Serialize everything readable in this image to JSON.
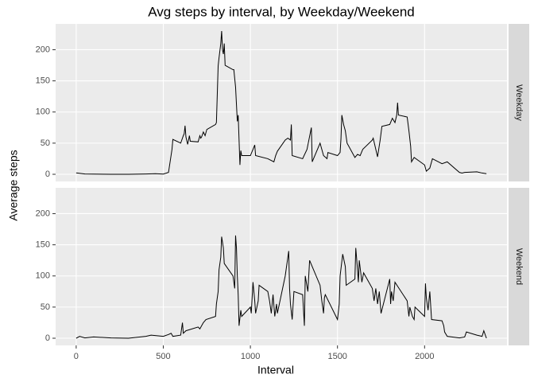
{
  "chart_data": {
    "type": "line",
    "title": "Avg steps by interval, by Weekday/Weekend",
    "x_label": "Interval",
    "y_label": "Average steps",
    "xlim": [
      -118,
      2473
    ],
    "ylim": [
      -11.5,
      241.5
    ],
    "xticks": [
      0,
      500,
      1000,
      1500,
      2000
    ],
    "yticks": [
      0,
      50,
      100,
      150,
      200
    ],
    "grid": true,
    "color": "#000000",
    "facets": [
      {
        "name": "Weekday",
        "x": [
          0,
          50,
          100,
          200,
          300,
          400,
          455,
          500,
          530,
          550,
          555,
          600,
          615,
          620,
          625,
          630,
          640,
          650,
          655,
          700,
          710,
          715,
          720,
          730,
          740,
          750,
          800,
          805,
          815,
          820,
          830,
          835,
          840,
          845,
          850,
          855,
          900,
          905,
          915,
          925,
          930,
          940,
          945,
          950,
          1000,
          1015,
          1025,
          1030,
          1100,
          1135,
          1145,
          1155,
          1200,
          1215,
          1230,
          1235,
          1240,
          1300,
          1325,
          1350,
          1355,
          1400,
          1420,
          1440,
          1445,
          1500,
          1515,
          1520,
          1525,
          1535,
          1545,
          1555,
          1600,
          1615,
          1630,
          1645,
          1700,
          1705,
          1730,
          1745,
          1755,
          1800,
          1815,
          1830,
          1840,
          1845,
          1850,
          1900,
          1910,
          1920,
          1925,
          1940,
          2000,
          2010,
          2030,
          2045,
          2100,
          2130,
          2200,
          2215,
          2230,
          2300,
          2330,
          2355
        ],
        "values": [
          2.3,
          0.5,
          0.4,
          0,
          0,
          0.5,
          1,
          0.3,
          3,
          40,
          56,
          50,
          62,
          65,
          78,
          60,
          48,
          62,
          53,
          52,
          62,
          58,
          60,
          68,
          62,
          72,
          80,
          83,
          174,
          187,
          210,
          230,
          200,
          193,
          210,
          175,
          168,
          168,
          140,
          85,
          95,
          15,
          38,
          30,
          30,
          40,
          47,
          30,
          25,
          20,
          30,
          37,
          55,
          58,
          55,
          80,
          30,
          25,
          40,
          75,
          20,
          50,
          30,
          25,
          35,
          30,
          35,
          57,
          95,
          80,
          70,
          50,
          27,
          32,
          30,
          40,
          55,
          58,
          28,
          55,
          77,
          80,
          90,
          83,
          95,
          115,
          95,
          92,
          70,
          45,
          20,
          27,
          15,
          5,
          10,
          25,
          17,
          20,
          3,
          2,
          3,
          4,
          2,
          1
        ]
      },
      {
        "name": "Weekend",
        "x": [
          0,
          20,
          50,
          100,
          200,
          300,
          400,
          430,
          500,
          530,
          545,
          555,
          600,
          610,
          615,
          630,
          700,
          710,
          730,
          745,
          800,
          805,
          815,
          820,
          830,
          835,
          845,
          850,
          900,
          910,
          915,
          920,
          925,
          930,
          935,
          945,
          950,
          1000,
          1005,
          1015,
          1025,
          1030,
          1045,
          1050,
          1100,
          1110,
          1120,
          1130,
          1140,
          1150,
          1155,
          1200,
          1215,
          1220,
          1225,
          1230,
          1240,
          1250,
          1300,
          1310,
          1315,
          1330,
          1340,
          1400,
          1410,
          1420,
          1425,
          1430,
          1500,
          1510,
          1515,
          1530,
          1545,
          1550,
          1600,
          1605,
          1615,
          1620,
          1625,
          1640,
          1650,
          1700,
          1710,
          1720,
          1730,
          1740,
          1750,
          1800,
          1805,
          1810,
          1820,
          1830,
          1900,
          1910,
          1915,
          1930,
          1940,
          1945,
          2000,
          2005,
          2010,
          2020,
          2030,
          2040,
          2100,
          2110,
          2115,
          2130,
          2200,
          2230,
          2240,
          2300,
          2330,
          2340,
          2355
        ],
        "values": [
          0,
          3,
          0.5,
          2,
          0.5,
          0,
          3,
          5,
          3,
          6,
          8,
          3,
          5,
          25,
          8,
          12,
          18,
          15,
          25,
          30,
          35,
          55,
          75,
          110,
          130,
          163,
          145,
          120,
          100,
          80,
          165,
          145,
          100,
          70,
          20,
          45,
          35,
          50,
          40,
          90,
          60,
          40,
          60,
          85,
          75,
          60,
          40,
          70,
          35,
          55,
          40,
          100,
          130,
          140,
          80,
          55,
          30,
          75,
          70,
          20,
          100,
          75,
          125,
          85,
          60,
          40,
          65,
          70,
          30,
          55,
          100,
          135,
          115,
          85,
          95,
          145,
          110,
          90,
          125,
          90,
          105,
          80,
          60,
          80,
          55,
          75,
          40,
          95,
          55,
          75,
          60,
          90,
          60,
          35,
          50,
          35,
          30,
          50,
          35,
          88,
          65,
          45,
          75,
          30,
          28,
          20,
          10,
          3,
          0.5,
          2,
          10,
          5,
          3,
          12,
          0
        ]
      }
    ]
  }
}
